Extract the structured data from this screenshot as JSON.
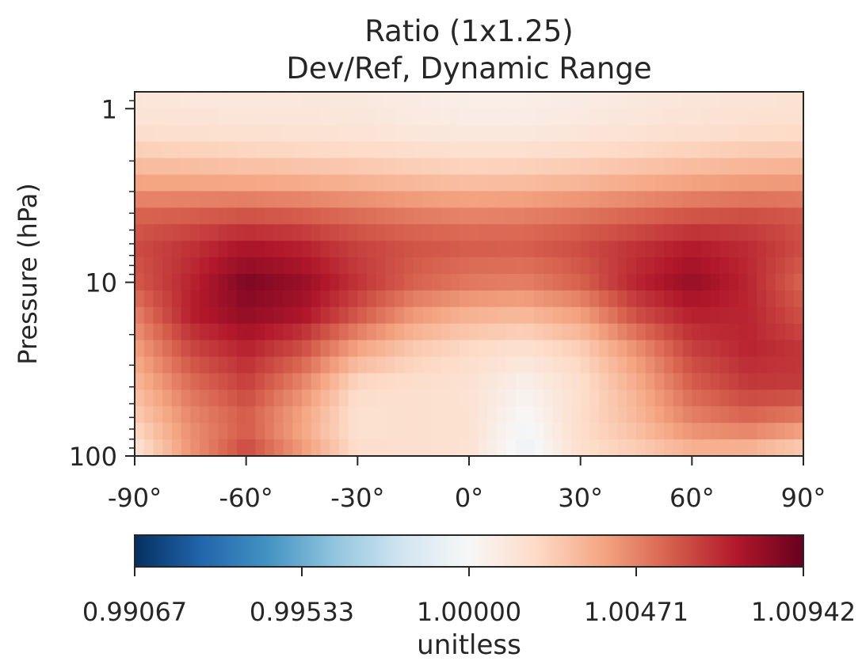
{
  "chart_data": {
    "type": "heatmap",
    "title": "Ratio (1x1.25)",
    "subtitle": "Dev/Ref, Dynamic Range",
    "ylabel": "Pressure (hPa)",
    "xlabel": "",
    "y_scale": "log",
    "y_inverted": true,
    "xlim": [
      -90,
      90
    ],
    "ylim": [
      100,
      0.8
    ],
    "xtick_labels": [
      "-90°",
      "-60°",
      "-30°",
      "0°",
      "30°",
      "60°",
      "90°"
    ],
    "xticks": [
      -90,
      -60,
      -30,
      0,
      30,
      60,
      90
    ],
    "ytick_labels": [
      "1",
      "10",
      "100"
    ],
    "yticks": [
      1,
      10,
      100
    ],
    "colorbar": {
      "label": "unitless",
      "colormap": "RdBu_r",
      "vmin": 0.99067,
      "vmax": 1.00942,
      "tick_labels": [
        "0.99067",
        "0.99533",
        "1.00000",
        "1.00471",
        "1.00942"
      ],
      "ticks": [
        0.99067,
        0.99533,
        1.0,
        1.00471,
        1.00942
      ],
      "colors": [
        "#053061",
        "#2166ac",
        "#4393c3",
        "#92c5de",
        "#d1e5f0",
        "#f7f7f7",
        "#fddbc7",
        "#f4a582",
        "#d6604d",
        "#b2182b",
        "#67001f"
      ]
    },
    "latitudes": [
      -90,
      -75,
      -60,
      -45,
      -30,
      -15,
      0,
      15,
      30,
      45,
      60,
      75,
      90
    ],
    "pressure_levels": [
      1,
      1.5,
      2.5,
      4,
      6,
      10,
      15,
      25,
      40,
      65,
      100
    ],
    "values": [
      [
        1.0012,
        1.0011,
        1.0011,
        1.0011,
        1.001,
        1.0008,
        1.0006,
        1.0006,
        1.0008,
        1.001,
        1.0012,
        1.0013,
        1.0014
      ],
      [
        1.0018,
        1.0017,
        1.0016,
        1.0015,
        1.0014,
        1.0012,
        1.0011,
        1.0011,
        1.0013,
        1.0015,
        1.0017,
        1.0019,
        1.002
      ],
      [
        1.0035,
        1.0034,
        1.0033,
        1.0032,
        1.003,
        1.0028,
        1.0026,
        1.0027,
        1.0029,
        1.0032,
        1.0035,
        1.0037,
        1.0038
      ],
      [
        1.0055,
        1.0056,
        1.0058,
        1.0056,
        1.0052,
        1.0048,
        1.0046,
        1.0047,
        1.005,
        1.0054,
        1.0058,
        1.006,
        1.0058
      ],
      [
        1.0062,
        1.0068,
        1.0076,
        1.0072,
        1.0064,
        1.006,
        1.0058,
        1.0058,
        1.0062,
        1.0068,
        1.0074,
        1.007,
        1.0062
      ],
      [
        1.0058,
        1.0072,
        1.0088,
        1.0082,
        1.0068,
        1.0056,
        1.005,
        1.0048,
        1.0056,
        1.0072,
        1.0082,
        1.0072,
        1.0055
      ],
      [
        1.0048,
        1.0074,
        1.0084,
        1.0078,
        1.006,
        1.0042,
        1.0034,
        1.0032,
        1.004,
        1.0062,
        1.0074,
        1.0072,
        1.006
      ],
      [
        1.0038,
        1.0062,
        1.0072,
        1.006,
        1.0036,
        1.0024,
        1.0018,
        1.0014,
        1.0022,
        1.0042,
        1.0064,
        1.0072,
        1.0068
      ],
      [
        1.003,
        1.0052,
        1.0064,
        1.0045,
        1.0018,
        1.0016,
        1.0014,
        1.0004,
        1.0016,
        1.0034,
        1.0056,
        1.0066,
        1.0066
      ],
      [
        1.0022,
        1.0044,
        1.0056,
        1.0036,
        1.0014,
        1.0016,
        1.0015,
        0.9998,
        1.0018,
        1.003,
        1.0046,
        1.0052,
        1.0045
      ],
      [
        1.0012,
        1.0042,
        1.0064,
        1.0042,
        1.0018,
        1.0016,
        1.0014,
        0.9994,
        1.0016,
        1.0022,
        1.003,
        1.0028,
        1.0018
      ]
    ]
  }
}
